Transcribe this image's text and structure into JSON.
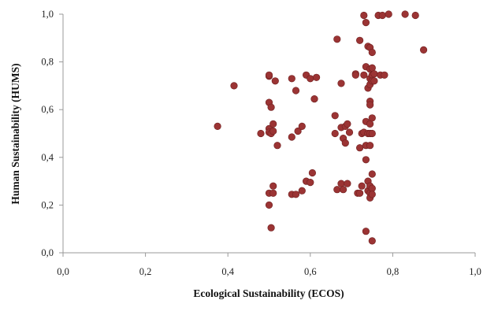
{
  "chart_data": {
    "type": "scatter",
    "xlabel": "Ecological Sustainability  (ECOS)",
    "ylabel": "Human Sustainability  (HUMS)",
    "xlim": [
      0,
      1
    ],
    "ylim": [
      0,
      1
    ],
    "xticks": [
      0,
      0.2,
      0.4,
      0.6,
      0.8,
      1.0
    ],
    "yticks": [
      0,
      0.2,
      0.4,
      0.6,
      0.8,
      1.0
    ],
    "xtick_labels": [
      "0,0",
      "0,2",
      "0,4",
      "0,6",
      "0,8",
      "1,0"
    ],
    "ytick_labels": [
      "0,0",
      "0,2",
      "0,4",
      "0,6",
      "0,8",
      "1,0"
    ],
    "grid": false,
    "point_color": "#9b3434",
    "points": [
      [
        0.375,
        0.53
      ],
      [
        0.415,
        0.7
      ],
      [
        0.48,
        0.5
      ],
      [
        0.5,
        0.74
      ],
      [
        0.5,
        0.745
      ],
      [
        0.5,
        0.63
      ],
      [
        0.505,
        0.61
      ],
      [
        0.5,
        0.52
      ],
      [
        0.5,
        0.505
      ],
      [
        0.505,
        0.5
      ],
      [
        0.5,
        0.25
      ],
      [
        0.5,
        0.2
      ],
      [
        0.505,
        0.105
      ],
      [
        0.51,
        0.54
      ],
      [
        0.51,
        0.51
      ],
      [
        0.51,
        0.28
      ],
      [
        0.51,
        0.25
      ],
      [
        0.515,
        0.72
      ],
      [
        0.52,
        0.45
      ],
      [
        0.555,
        0.73
      ],
      [
        0.555,
        0.485
      ],
      [
        0.555,
        0.245
      ],
      [
        0.565,
        0.245
      ],
      [
        0.565,
        0.68
      ],
      [
        0.57,
        0.51
      ],
      [
        0.58,
        0.53
      ],
      [
        0.58,
        0.26
      ],
      [
        0.59,
        0.745
      ],
      [
        0.59,
        0.3
      ],
      [
        0.6,
        0.73
      ],
      [
        0.6,
        0.295
      ],
      [
        0.605,
        0.335
      ],
      [
        0.61,
        0.645
      ],
      [
        0.615,
        0.735
      ],
      [
        0.66,
        0.575
      ],
      [
        0.66,
        0.5
      ],
      [
        0.665,
        0.895
      ],
      [
        0.665,
        0.265
      ],
      [
        0.675,
        0.71
      ],
      [
        0.675,
        0.525
      ],
      [
        0.675,
        0.29
      ],
      [
        0.68,
        0.48
      ],
      [
        0.68,
        0.265
      ],
      [
        0.685,
        0.46
      ],
      [
        0.685,
        0.53
      ],
      [
        0.69,
        0.54
      ],
      [
        0.69,
        0.29
      ],
      [
        0.695,
        0.505
      ],
      [
        0.71,
        0.75
      ],
      [
        0.71,
        0.745
      ],
      [
        0.715,
        0.25
      ],
      [
        0.72,
        0.89
      ],
      [
        0.72,
        0.25
      ],
      [
        0.72,
        0.44
      ],
      [
        0.725,
        0.5
      ],
      [
        0.725,
        0.28
      ],
      [
        0.73,
        0.995
      ],
      [
        0.73,
        0.505
      ],
      [
        0.73,
        0.745
      ],
      [
        0.735,
        0.965
      ],
      [
        0.735,
        0.78
      ],
      [
        0.735,
        0.55
      ],
      [
        0.735,
        0.45
      ],
      [
        0.735,
        0.39
      ],
      [
        0.735,
        0.09
      ],
      [
        0.74,
        0.865
      ],
      [
        0.74,
        0.69
      ],
      [
        0.74,
        0.5
      ],
      [
        0.74,
        0.3
      ],
      [
        0.74,
        0.26
      ],
      [
        0.745,
        0.86
      ],
      [
        0.745,
        0.77
      ],
      [
        0.745,
        0.73
      ],
      [
        0.745,
        0.705
      ],
      [
        0.745,
        0.635
      ],
      [
        0.745,
        0.62
      ],
      [
        0.745,
        0.54
      ],
      [
        0.745,
        0.5
      ],
      [
        0.745,
        0.45
      ],
      [
        0.745,
        0.28
      ],
      [
        0.745,
        0.25
      ],
      [
        0.745,
        0.23
      ],
      [
        0.75,
        0.84
      ],
      [
        0.75,
        0.775
      ],
      [
        0.75,
        0.745
      ],
      [
        0.75,
        0.72
      ],
      [
        0.75,
        0.565
      ],
      [
        0.75,
        0.5
      ],
      [
        0.75,
        0.33
      ],
      [
        0.75,
        0.27
      ],
      [
        0.75,
        0.245
      ],
      [
        0.75,
        0.05
      ],
      [
        0.755,
        0.75
      ],
      [
        0.755,
        0.72
      ],
      [
        0.765,
        0.995
      ],
      [
        0.77,
        0.745
      ],
      [
        0.775,
        0.995
      ],
      [
        0.78,
        0.745
      ],
      [
        0.79,
        1.0
      ],
      [
        0.83,
        1.0
      ],
      [
        0.855,
        0.995
      ],
      [
        0.875,
        0.85
      ]
    ]
  }
}
